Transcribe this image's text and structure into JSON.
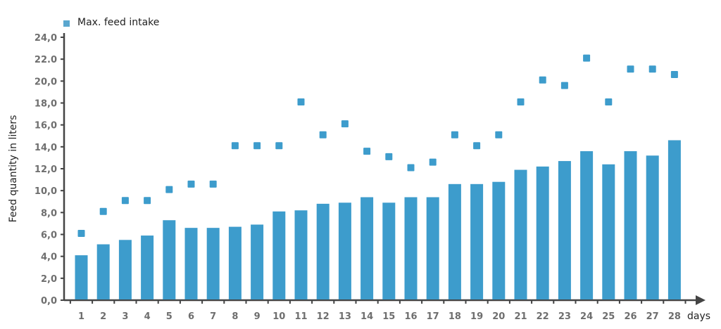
{
  "chart_data": {
    "type": "bar",
    "title": "",
    "xlabel": "days",
    "ylabel": "Feed quantity in liters",
    "ylim": [
      0,
      24
    ],
    "yticks": [
      "0,0",
      "2,0",
      "4,0",
      "6,0",
      "8,0",
      "10,0",
      "12,0",
      "14,0",
      "16,0",
      "18,0",
      "20,0",
      "22.0",
      "24,0"
    ],
    "grid": false,
    "legend_position": "top-left",
    "categories": [
      "1",
      "2",
      "3",
      "4",
      "5",
      "6",
      "7",
      "8",
      "9",
      "10",
      "11",
      "12",
      "13",
      "14",
      "15",
      "16",
      "17",
      "18",
      "19",
      "20",
      "21",
      "22",
      "23",
      "24",
      "25",
      "26",
      "27",
      "28"
    ],
    "series": [
      {
        "name": "Feed intake",
        "type": "bar",
        "color": "#3d9ccc",
        "values": [
          4.1,
          5.1,
          5.5,
          5.9,
          7.3,
          6.6,
          6.6,
          6.7,
          6.9,
          8.1,
          8.2,
          8.8,
          8.9,
          9.4,
          8.9,
          9.4,
          9.4,
          10.6,
          10.6,
          10.8,
          11.9,
          12.2,
          12.7,
          13.6,
          12.4,
          13.6,
          13.2,
          14.6
        ]
      },
      {
        "name": "Max. feed intake",
        "type": "scatter",
        "marker": "square",
        "color": "#3d9ccc",
        "values": [
          6.1,
          8.1,
          9.1,
          9.1,
          10.1,
          10.6,
          10.6,
          14.1,
          14.1,
          14.1,
          18.1,
          15.1,
          16.1,
          13.6,
          13.1,
          12.1,
          12.6,
          15.1,
          14.1,
          15.1,
          18.1,
          20.1,
          19.6,
          22.1,
          18.1,
          21.1,
          21.1,
          20.6
        ]
      }
    ]
  },
  "legend": {
    "label": "Max. feed intake"
  },
  "axes": {
    "x_title": "days",
    "y_title": "Feed quantity in liters"
  },
  "colors": {
    "bar": "#3d9ccc",
    "axis": "#444444"
  }
}
